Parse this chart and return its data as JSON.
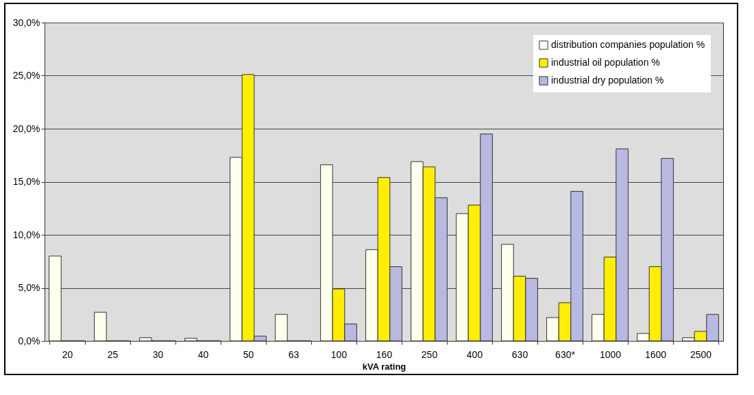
{
  "chart_data": {
    "type": "bar",
    "xlabel": "kVA rating",
    "categories": [
      "20",
      "25",
      "30",
      "40",
      "50",
      "63",
      "100",
      "160",
      "250",
      "400",
      "630",
      "630*",
      "1000",
      "1600",
      "2500"
    ],
    "series": [
      {
        "name": "distribution companies population %",
        "color": "#ffffee",
        "values": [
          8.0,
          2.7,
          0.3,
          0.25,
          17.3,
          2.5,
          16.6,
          8.6,
          16.9,
          12.0,
          9.1,
          2.2,
          2.5,
          0.7,
          0.3
        ]
      },
      {
        "name": "industrial oil population %",
        "color": "#ffee00",
        "values": [
          0,
          0,
          0,
          0,
          25.1,
          0,
          4.9,
          15.4,
          16.4,
          12.8,
          6.1,
          3.6,
          7.9,
          7.0,
          0.9
        ]
      },
      {
        "name": "industrial dry population %",
        "color": "#b8b8e0",
        "values": [
          0,
          0,
          0,
          0,
          0.45,
          0,
          1.6,
          7.0,
          13.5,
          19.5,
          5.9,
          14.1,
          18.1,
          17.2,
          2.5
        ]
      }
    ],
    "ylim": [
      0,
      30
    ],
    "yticks": [
      {
        "value": 0,
        "label": "0,0%"
      },
      {
        "value": 5,
        "label": "5,0%"
      },
      {
        "value": 10,
        "label": "10,0%"
      },
      {
        "value": 15,
        "label": "15,0%"
      },
      {
        "value": 20,
        "label": "20,0%"
      },
      {
        "value": 25,
        "label": "25,0%"
      },
      {
        "value": 30,
        "label": "30,0%"
      }
    ],
    "grid": "y",
    "legend": "top right"
  }
}
